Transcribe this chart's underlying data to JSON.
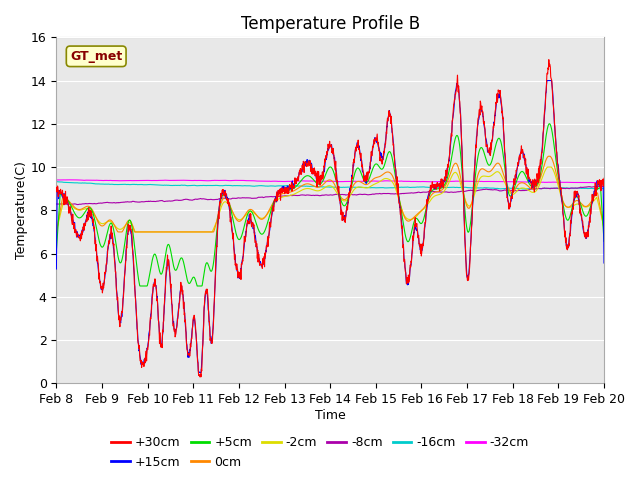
{
  "title": "Temperature Profile B",
  "xlabel": "Time",
  "ylabel": "Temperature(C)",
  "ylim": [
    0,
    16
  ],
  "x_tick_labels": [
    "Feb 8",
    "Feb 9",
    "Feb 10",
    "Feb 11",
    "Feb 12",
    "Feb 13",
    "Feb 14",
    "Feb 15",
    "Feb 16",
    "Feb 17",
    "Feb 18",
    "Feb 19",
    "Feb 20"
  ],
  "series_colors": {
    "+30cm": "#ff0000",
    "+15cm": "#0000ff",
    "+5cm": "#00dd00",
    "0cm": "#ff8800",
    "-2cm": "#dddd00",
    "-8cm": "#aa00aa",
    "-16cm": "#00cccc",
    "-32cm": "#ff00ff"
  },
  "legend_label_order": [
    "+30cm",
    "+15cm",
    "+5cm",
    "0cm",
    "-2cm",
    "-8cm",
    "-16cm",
    "-32cm"
  ],
  "bg_color": "#e8e8e8",
  "annotation_text": "GT_met",
  "title_fontsize": 12,
  "axis_fontsize": 9,
  "legend_fontsize": 9
}
